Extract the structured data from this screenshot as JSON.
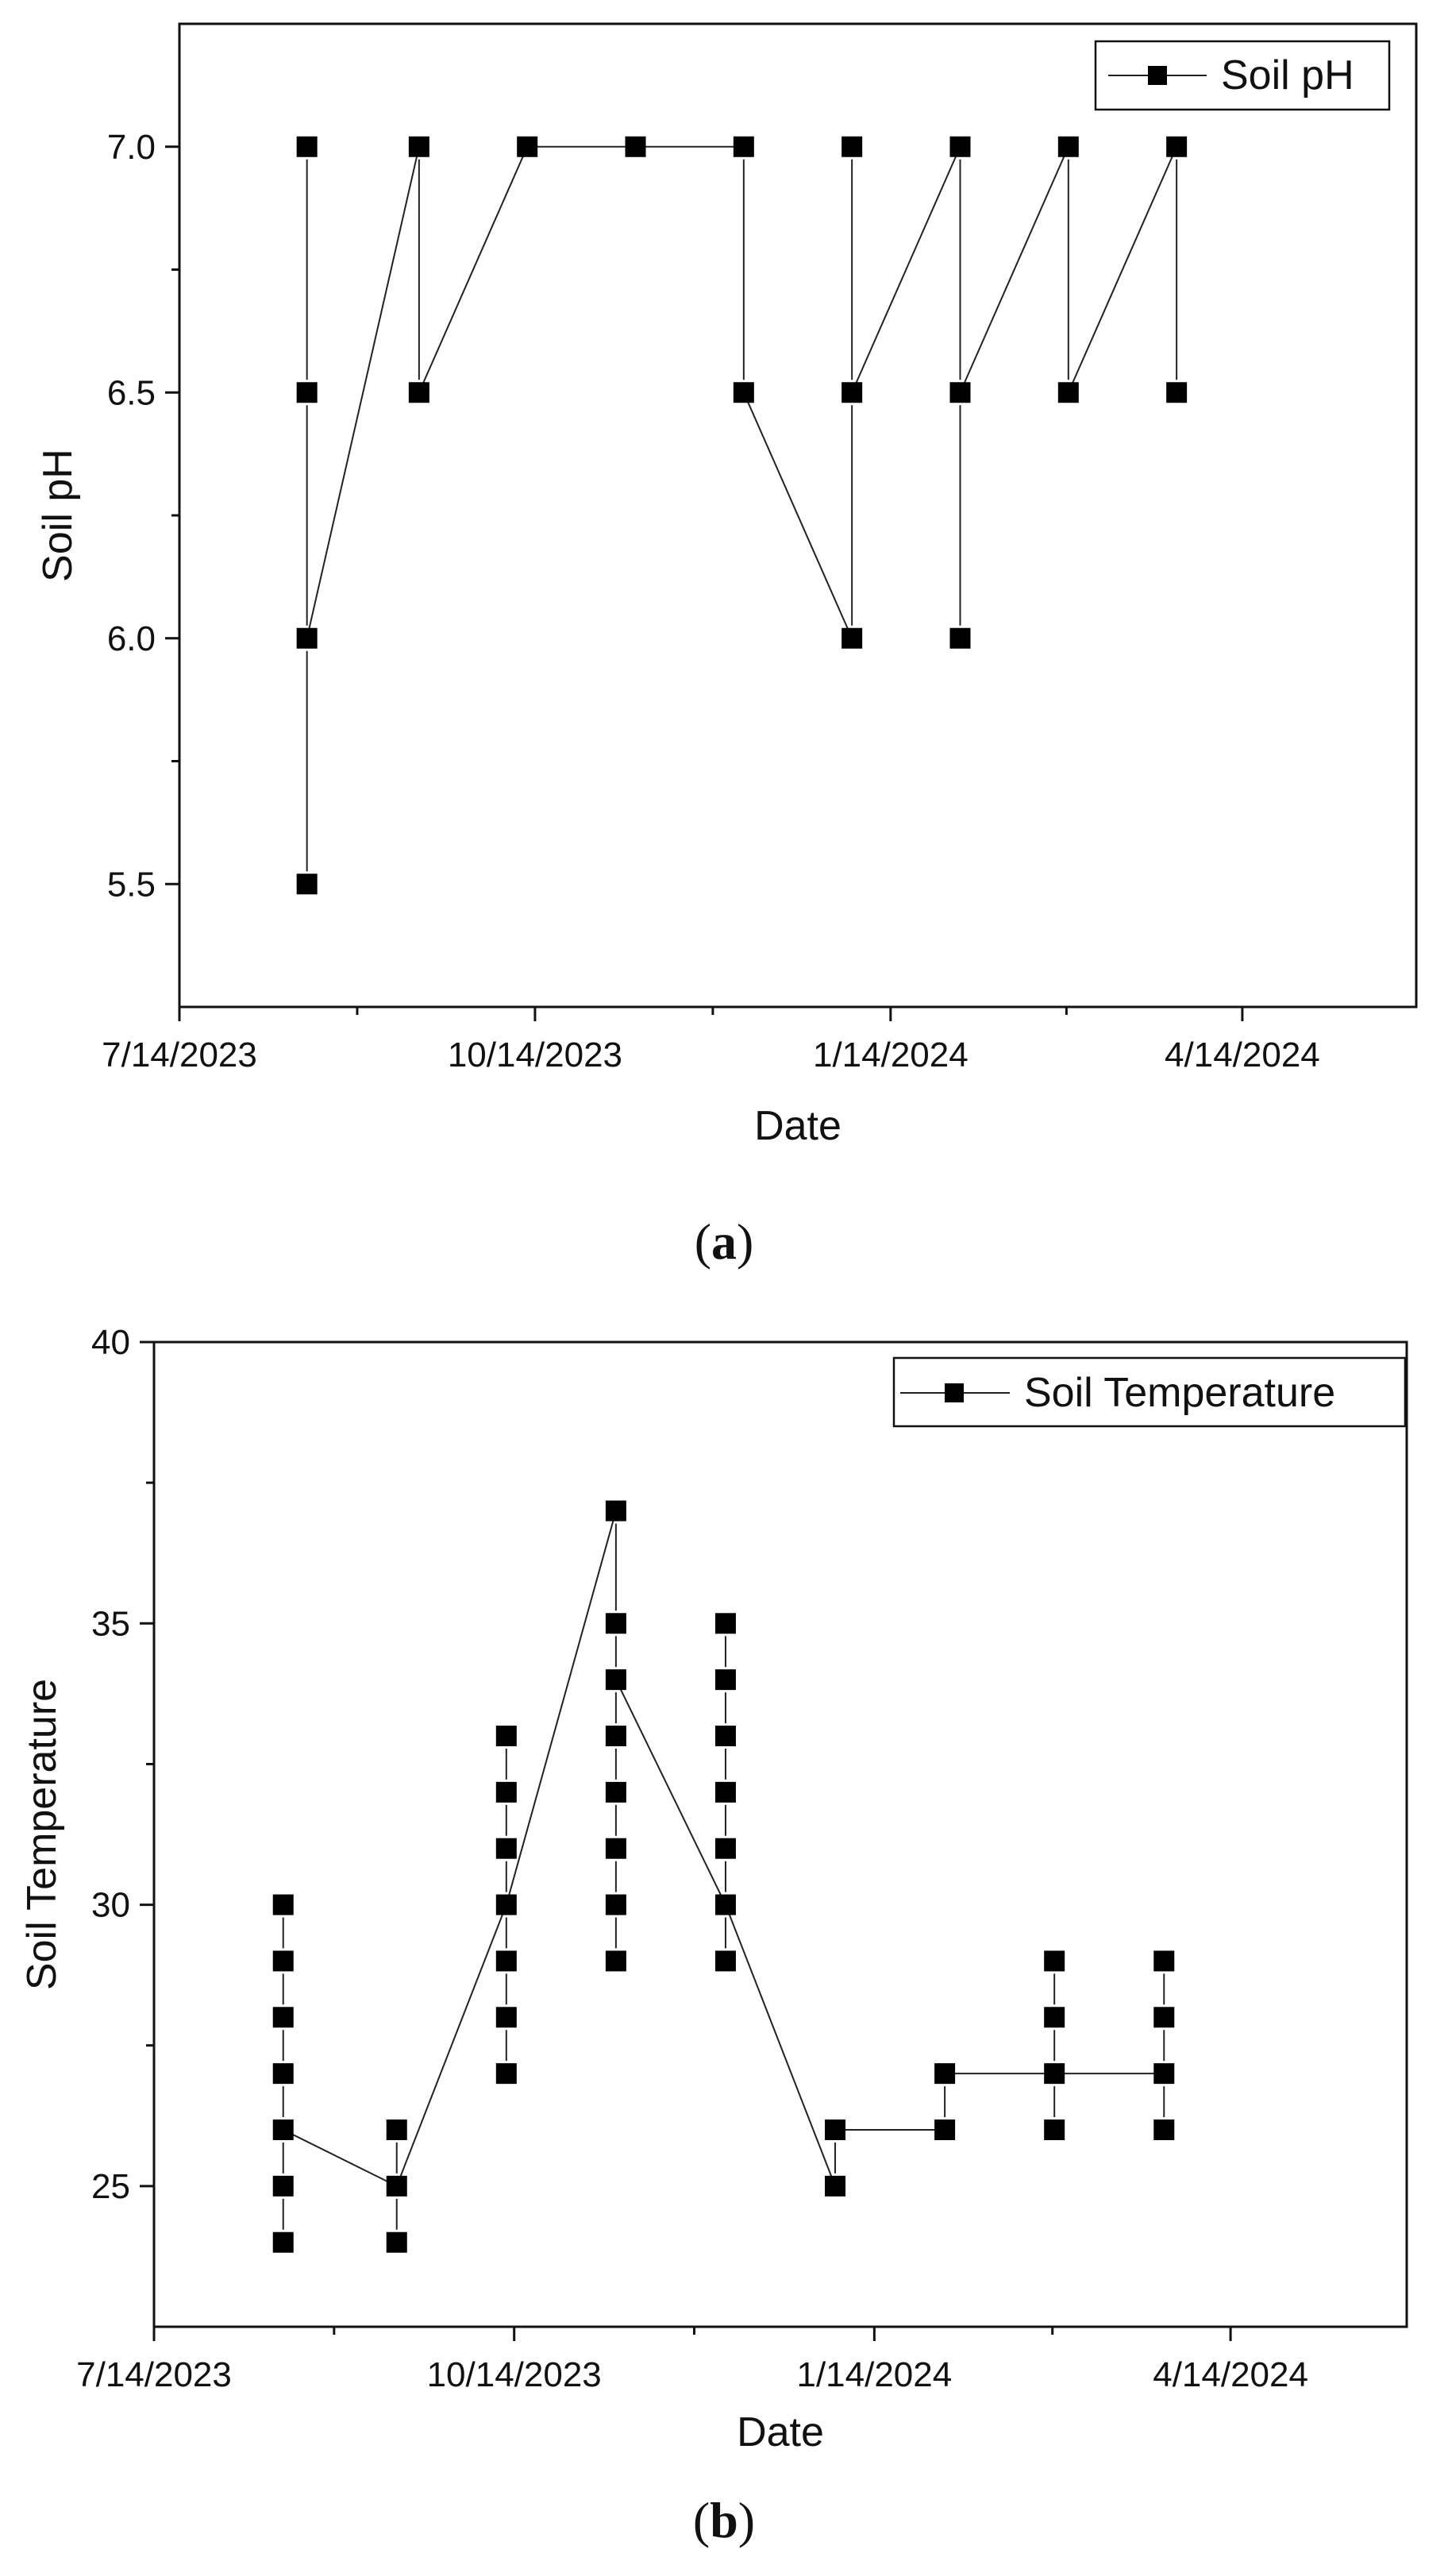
{
  "chart_data": [
    {
      "type": "line",
      "caption_letter": "a",
      "xlabel": "Date",
      "ylabel": "Soil pH",
      "x_ticks": [
        "7/14/2023",
        "10/14/2023",
        "1/14/2024",
        "4/14/2024"
      ],
      "x_tick_days": [
        0,
        92,
        184,
        275
      ],
      "y_ticks": [
        "5.5",
        "6.0",
        "6.5",
        "7.0"
      ],
      "y_tick_values": [
        5.5,
        6.0,
        6.5,
        7.0
      ],
      "xlim_days": [
        0,
        320
      ],
      "ylim": [
        5.25,
        7.25
      ],
      "legend": "Soil pH",
      "legend_position": "top-right",
      "series": [
        {
          "name": "Soil pH",
          "x_days": [
            33,
            33,
            33,
            33,
            62,
            62,
            90,
            118,
            146,
            146,
            174,
            174,
            174,
            202,
            202,
            202,
            230,
            230,
            258,
            258
          ],
          "values": [
            7.0,
            6.5,
            6.0,
            5.5,
            7.0,
            6.5,
            7.0,
            7.0,
            7.0,
            6.5,
            7.0,
            6.5,
            6.0,
            7.0,
            6.5,
            6.0,
            7.0,
            6.5,
            7.0,
            6.5
          ],
          "line_x_days": [
            33,
            33,
            62,
            62,
            90,
            118,
            146,
            146,
            174,
            174,
            202,
            202,
            230,
            230,
            258,
            258
          ],
          "line_values": [
            5.5,
            6.0,
            7.0,
            6.5,
            7.0,
            7.0,
            7.0,
            6.5,
            6.0,
            6.5,
            7.0,
            6.5,
            7.0,
            6.5,
            7.0,
            6.5
          ],
          "connector_pairs": [
            [
              1,
              2
            ],
            [
              2,
              4
            ]
          ]
        }
      ]
    },
    {
      "type": "line",
      "caption_letter": "b",
      "xlabel": "Date",
      "ylabel": "Soil Temperature",
      "x_ticks": [
        "7/14/2023",
        "10/14/2023",
        "1/14/2024",
        "4/14/2024"
      ],
      "x_tick_days": [
        0,
        92,
        184,
        275
      ],
      "y_ticks": [
        "25",
        "30",
        "35",
        "40"
      ],
      "y_tick_values": [
        25,
        30,
        35,
        40
      ],
      "xlim_days": [
        0,
        320
      ],
      "ylim": [
        22.5,
        40
      ],
      "legend": "Soil Temperature",
      "legend_position": "top-right",
      "series": [
        {
          "name": "Soil Temperature",
          "x_days": [
            33,
            33,
            33,
            33,
            33,
            33,
            33,
            62,
            62,
            62,
            90,
            90,
            90,
            90,
            90,
            90,
            90,
            118,
            118,
            118,
            118,
            118,
            118,
            118,
            118,
            146,
            146,
            146,
            146,
            146,
            146,
            146,
            174,
            174,
            202,
            202,
            230,
            230,
            230,
            230,
            258,
            258,
            258,
            258
          ],
          "values": [
            30,
            29,
            28,
            27,
            26,
            25,
            24,
            26,
            25,
            24,
            33,
            32,
            31,
            30,
            29,
            28,
            27,
            37,
            35,
            34,
            33,
            32,
            31,
            30,
            29,
            35,
            34,
            33,
            32,
            31,
            30,
            29,
            26,
            25,
            27,
            26,
            29,
            28,
            27,
            26,
            29,
            28,
            27,
            26
          ],
          "path_x_days": [
            33,
            62,
            90,
            118,
            118,
            146,
            174,
            174,
            202,
            202,
            230,
            258,
            258
          ],
          "path_values": [
            26,
            25,
            30,
            37,
            34,
            30,
            25,
            26,
            26,
            27,
            27,
            27,
            27
          ]
        }
      ]
    }
  ]
}
